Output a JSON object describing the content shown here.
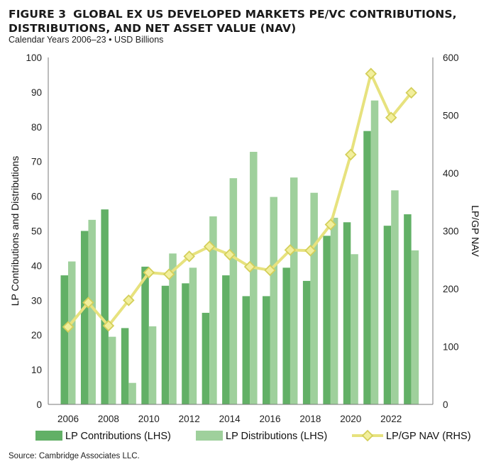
{
  "header": {
    "figure_label": "FIGURE 3",
    "title": "GLOBAL EX US DEVELOPED MARKETS PE/VC CONTRIBUTIONS, DISTRIBUTIONS, AND NET ASSET VALUE (NAV)",
    "subtitle": "Calendar Years 2006–23 • USD Billions"
  },
  "source": "Source: Cambridge Associates LLC.",
  "chart_data": {
    "type": "bar",
    "years": [
      2006,
      2007,
      2008,
      2009,
      2010,
      2011,
      2012,
      2013,
      2014,
      2015,
      2016,
      2017,
      2018,
      2019,
      2020,
      2021,
      2022,
      2023
    ],
    "x_tick_labels": [
      "2006",
      "2008",
      "2010",
      "2012",
      "2014",
      "2016",
      "2018",
      "2020",
      "2022"
    ],
    "series": [
      {
        "name": "LP Contributions (LHS)",
        "type": "bar",
        "axis": "left",
        "color": "#62b066",
        "values": [
          37.2,
          50.0,
          56.2,
          22.0,
          39.7,
          34.2,
          34.9,
          26.4,
          37.2,
          31.2,
          31.2,
          39.4,
          35.6,
          48.6,
          52.5,
          78.8,
          51.5,
          54.8
        ]
      },
      {
        "name": "LP Distributions (LHS)",
        "type": "bar",
        "axis": "left",
        "color": "#9fd09c",
        "values": [
          41.2,
          53.2,
          19.5,
          6.2,
          22.5,
          43.5,
          39.4,
          54.2,
          65.2,
          72.8,
          59.8,
          65.4,
          61.0,
          53.8,
          43.3,
          87.6,
          61.7,
          44.4
        ]
      },
      {
        "name": "LP/GP NAV (RHS)",
        "type": "line",
        "axis": "right",
        "color": "#e7e27e",
        "marker": "diamond",
        "values": [
          134,
          176,
          136,
          180,
          228,
          225,
          256,
          273,
          259,
          238,
          232,
          267,
          266,
          311,
          432,
          572,
          496,
          539
        ]
      }
    ],
    "ylabel_left": "LP Contributions and Distributions",
    "ylabel_right": "LP/GP NAV",
    "ylim_left": [
      0,
      100
    ],
    "ylim_right": [
      0,
      600
    ],
    "yticks_left": [
      0,
      10,
      20,
      30,
      40,
      50,
      60,
      70,
      80,
      90,
      100
    ],
    "yticks_right": [
      0,
      100,
      200,
      300,
      400,
      500,
      600
    ],
    "grid": false,
    "legend_position": "bottom"
  }
}
